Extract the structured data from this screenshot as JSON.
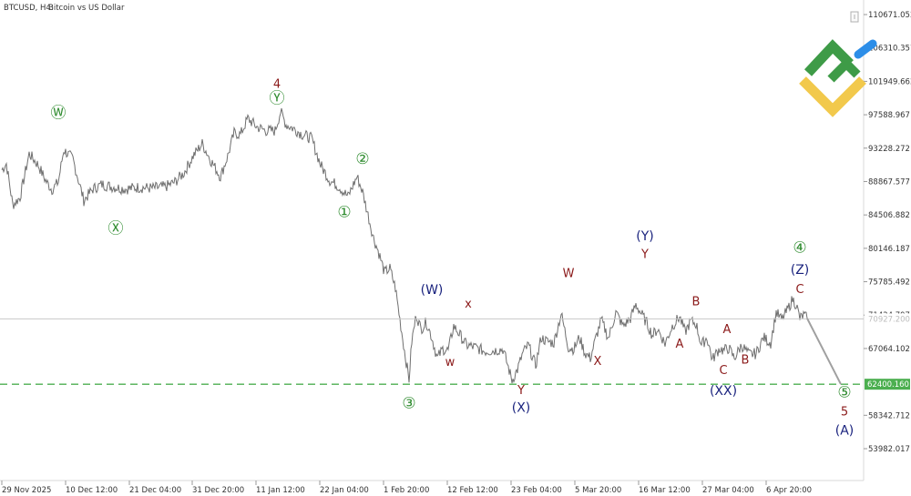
{
  "header": {
    "symbol": "BTCUSD, H4:",
    "description": "Bitcoin vs US Dollar"
  },
  "colors": {
    "price_line": "#6f6f6f",
    "green_labels": "#2e8b2e",
    "maroon_labels": "#8b1a1a",
    "navy_labels": "#1a237e",
    "support_line": "#4caf50",
    "forecast_line": "#a0a0a0",
    "logo_green": "#3e9b47",
    "logo_yellow": "#f2c94c",
    "logo_blue": "#2d8ee8"
  },
  "icons": {
    "top_right_button": "window-icon",
    "logo": "brand-logo"
  },
  "chart_data": {
    "type": "line",
    "title": "BTCUSD, H4: Bitcoin vs US Dollar",
    "xlabel": "",
    "ylabel": "",
    "ylim": [
      53982.017,
      110671.052
    ],
    "yticks": [
      "110671.052",
      "106310.357",
      "101949.662",
      "97588.967",
      "93228.272",
      "88867.577",
      "84506.882",
      "80146.187",
      "75785.492",
      "71424.797",
      "67064.102",
      "62400.160",
      "58342.712",
      "53982.017"
    ],
    "xticks": [
      "29 Nov 2025",
      "10 Dec 12:00",
      "21 Dec 04:00",
      "31 Dec 20:00",
      "11 Jan 12:00",
      "22 Jan 04:00",
      "1 Feb 20:00",
      "12 Feb 12:00",
      "23 Feb 04:00",
      "5 Mar 20:00",
      "16 Mar 12:00",
      "27 Mar 04:00",
      "6 Apr 20:00"
    ],
    "current_price": "70927.200",
    "support_level": {
      "value": 62400.16,
      "label": "62400.160"
    },
    "series": [
      {
        "type": "line",
        "x_index": [
          0,
          5,
          12,
          20,
          30,
          40,
          48,
          55,
          62,
          68,
          78,
          90,
          100,
          110,
          120,
          135,
          150,
          165,
          180,
          190,
          200,
          210,
          220,
          230,
          240,
          248,
          255,
          262,
          270,
          280,
          290,
          300,
          306,
          312,
          320,
          330,
          340,
          350,
          360,
          370,
          380,
          386,
          390,
          396,
          402,
          408,
          414,
          420,
          426,
          432,
          438,
          443,
          447,
          450,
          455,
          460,
          466,
          472,
          478,
          484,
          490,
          496,
          502,
          510,
          520,
          530,
          540,
          550,
          556,
          560,
          566,
          572,
          578,
          586,
          592,
          598,
          606,
          614,
          622,
          628,
          634,
          640,
          646,
          652,
          658,
          666,
          674,
          682,
          690,
          696,
          702,
          708,
          714,
          720,
          728,
          736,
          744,
          750,
          756,
          762,
          768,
          774,
          780,
          784,
          788,
          792,
          798,
          804,
          812,
          820,
          828,
          836,
          844,
          850,
          856,
          862,
          868,
          872,
          876,
          880,
          884
        ],
        "values": [
          90400,
          91200,
          85800,
          86800,
          92500,
          91000,
          89000,
          87800,
          88800,
          93000,
          91800,
          86400,
          87900,
          88500,
          88200,
          87900,
          88100,
          88000,
          88200,
          88800,
          90000,
          92200,
          93800,
          91500,
          89500,
          92200,
          95200,
          95000,
          97100,
          96000,
          95500,
          95500,
          98000,
          96300,
          95800,
          95000,
          94500,
          91000,
          89000,
          88200,
          86900,
          88500,
          89500,
          87500,
          84500,
          81500,
          79500,
          77000,
          77500,
          75000,
          70000,
          66000,
          63000,
          68000,
          71500,
          69600,
          70500,
          68500,
          65800,
          67000,
          66800,
          70000,
          69000,
          67500,
          67200,
          66700,
          66800,
          67000,
          64600,
          62900,
          64300,
          66500,
          67500,
          64800,
          68500,
          68000,
          67800,
          71600,
          67200,
          67000,
          68500,
          66500,
          65800,
          68400,
          70800,
          68400,
          71800,
          70000,
          71000,
          72800,
          71600,
          70400,
          68800,
          69600,
          67700,
          70000,
          71200,
          69200,
          70600,
          70300,
          67500,
          68500,
          65600,
          66400,
          67100,
          66800,
          67100,
          65800,
          67500,
          66300,
          66400,
          68500,
          67800,
          71800,
          70800,
          72000,
          73500,
          72800,
          71000,
          71400,
          71000
        ],
        "end_date": "10 Apr 2026"
      },
      {
        "name": "",
        "type": "forecast",
        "x_index": [
          884,
          921
        ],
        "values": [
          71000,
          62400
        ]
      }
    ],
    "wave_labels": [
      {
        "text": "Ⓦ",
        "color": "green",
        "xi": 62,
        "price": 97200
      },
      {
        "text": "Ⓧ",
        "color": "green",
        "xi": 125,
        "price": 82100
      },
      {
        "text": "4",
        "color": "maroon",
        "xi": 302,
        "price": 101100
      },
      {
        "text": "Ⓨ",
        "color": "green",
        "xi": 302,
        "price": 99100
      },
      {
        "text": "②",
        "color": "green",
        "xi": 396,
        "price": 91200
      },
      {
        "text": "①",
        "color": "green",
        "xi": 376,
        "price": 84200
      },
      {
        "text": "(W)",
        "color": "navy",
        "xi": 472,
        "price": 74200
      },
      {
        "text": "x",
        "color": "maroon",
        "xi": 512,
        "price": 72400
      },
      {
        "text": "w",
        "color": "maroon",
        "xi": 492,
        "price": 64800
      },
      {
        "text": "③",
        "color": "green",
        "xi": 447,
        "price": 59300
      },
      {
        "text": "Y",
        "color": "maroon",
        "xi": 570,
        "price": 61100
      },
      {
        "text": "(X)",
        "color": "navy",
        "xi": 570,
        "price": 58800
      },
      {
        "text": "W",
        "color": "maroon",
        "xi": 622,
        "price": 76400
      },
      {
        "text": "X",
        "color": "maroon",
        "xi": 654,
        "price": 64900
      },
      {
        "text": "(Y)",
        "color": "navy",
        "xi": 706,
        "price": 81200
      },
      {
        "text": "Y",
        "color": "maroon",
        "xi": 706,
        "price": 78900
      },
      {
        "text": "A",
        "color": "maroon",
        "xi": 744,
        "price": 67200
      },
      {
        "text": "B",
        "color": "maroon",
        "xi": 762,
        "price": 72700
      },
      {
        "text": "A",
        "color": "maroon",
        "xi": 796,
        "price": 69100
      },
      {
        "text": "C",
        "color": "maroon",
        "xi": 792,
        "price": 63700
      },
      {
        "text": "B",
        "color": "maroon",
        "xi": 816,
        "price": 65100
      },
      {
        "text": "(XX)",
        "color": "navy",
        "xi": 792,
        "price": 61000
      },
      {
        "text": "④",
        "color": "green",
        "xi": 876,
        "price": 79600
      },
      {
        "text": "(Z)",
        "color": "navy",
        "xi": 876,
        "price": 76800
      },
      {
        "text": "C",
        "color": "maroon",
        "xi": 876,
        "price": 74300
      },
      {
        "text": "⑤",
        "color": "green",
        "xi": 925,
        "price": 60700
      },
      {
        "text": "5",
        "color": "maroon",
        "xi": 925,
        "price": 58300
      },
      {
        "text": "(A)",
        "color": "navy",
        "xi": 925,
        "price": 55800
      }
    ]
  }
}
